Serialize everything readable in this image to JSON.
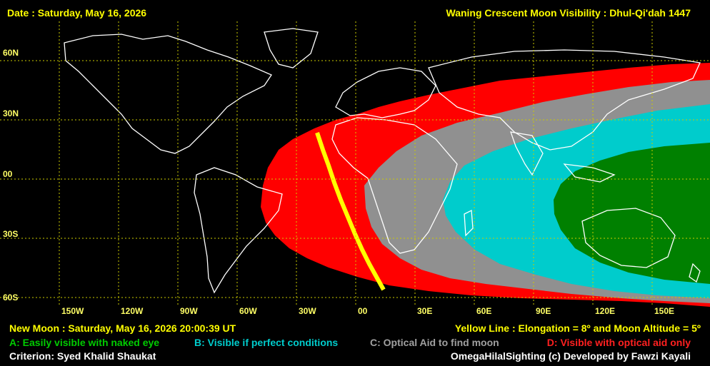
{
  "header": {
    "date": "Date : Saturday, May 16, 2026",
    "title": "Waning Crescent Moon Visibility : Dhul-Qi'dah 1447"
  },
  "lat_labels": [
    "60N",
    "30N",
    "00",
    "30S",
    "60S"
  ],
  "lon_labels": [
    "150W",
    "120W",
    "90W",
    "60W",
    "30W",
    "00",
    "30E",
    "60E",
    "90E",
    "120E",
    "150E"
  ],
  "footer": {
    "new_moon": "New Moon : Saturday, May 16, 2026  20:00:39  UT",
    "yellow_line": "Yellow Line : Elongation = 8º  and Moon Altitude = 5º",
    "legend_a": "A: Easily visible with naked eye",
    "legend_b": "B: Visible if perfect conditions",
    "legend_c": "C: Optical Aid to find moon",
    "legend_d": "D: Visible with optical aid only",
    "criterion": "Criterion: Syed Khalid Shaukat",
    "credit": "OmegaHilalSighting  (c)  Developed by Fawzi Kayali"
  },
  "colors": {
    "zone_a": "#008000",
    "zone_b": "#00cccc",
    "zone_c": "#909090",
    "zone_d": "#ff0000",
    "yellow_line": "#ffff00",
    "grid": "#cccc00",
    "header_text": "#ffff00",
    "legend_a": "#00cc00",
    "legend_b": "#00cccc",
    "legend_c": "#a0a0a0",
    "legend_d": "#ff2020"
  }
}
